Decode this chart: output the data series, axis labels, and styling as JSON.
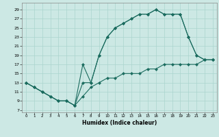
{
  "xlabel": "Humidex (Indice chaleur)",
  "bg_color": "#cce8e4",
  "grid_color": "#aad4ce",
  "line_color": "#1a6b5e",
  "xlim_min": -0.5,
  "xlim_max": 23.5,
  "ylim_min": 6.5,
  "ylim_max": 30.5,
  "xticks": [
    0,
    1,
    2,
    3,
    4,
    5,
    6,
    7,
    8,
    9,
    10,
    11,
    12,
    13,
    14,
    15,
    16,
    17,
    18,
    19,
    20,
    21,
    22,
    23
  ],
  "yticks": [
    7,
    9,
    11,
    13,
    15,
    17,
    19,
    21,
    23,
    25,
    27,
    29
  ],
  "line1_x": [
    0,
    1,
    2,
    3,
    4,
    5,
    6,
    7,
    8,
    9,
    10,
    11,
    12,
    13,
    14,
    15,
    16,
    17,
    18,
    19,
    20,
    21,
    22,
    23
  ],
  "line1_y": [
    13,
    12,
    11,
    10,
    9,
    9,
    8,
    13,
    13,
    19,
    23,
    25,
    26,
    27,
    28,
    28,
    29,
    28,
    28,
    28,
    23,
    19,
    18,
    18
  ],
  "line2_x": [
    0,
    1,
    2,
    3,
    4,
    5,
    6,
    7,
    8,
    9,
    10,
    11,
    12,
    13,
    14,
    15,
    16,
    17,
    18,
    19,
    20,
    21,
    22,
    23
  ],
  "line2_y": [
    13,
    12,
    11,
    10,
    9,
    9,
    8,
    17,
    13,
    19,
    23,
    25,
    26,
    27,
    28,
    28,
    29,
    28,
    28,
    28,
    23,
    19,
    18,
    18
  ],
  "line3_x": [
    0,
    1,
    2,
    3,
    4,
    5,
    6,
    7,
    8,
    9,
    10,
    11,
    12,
    13,
    14,
    15,
    16,
    17,
    18,
    19,
    20,
    21,
    22,
    23
  ],
  "line3_y": [
    13,
    12,
    11,
    10,
    9,
    9,
    8,
    10,
    12,
    13,
    14,
    14,
    15,
    15,
    15,
    16,
    16,
    17,
    17,
    17,
    17,
    17,
    18,
    18
  ]
}
